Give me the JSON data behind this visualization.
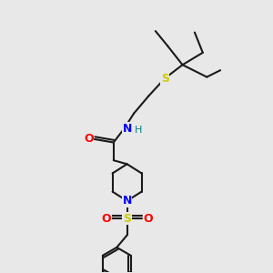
{
  "bg_color": "#e8e8e8",
  "bond_color": "#1a1a1a",
  "bond_width": 1.5,
  "atom_colors": {
    "O": "#ff0000",
    "N": "#0000ff",
    "S_thio": "#cccc00",
    "S_sulfonyl": "#cccc00",
    "C": "#1a1a1a",
    "H": "#008080"
  },
  "font_size_atom": 8.5,
  "font_size_small": 7.0
}
